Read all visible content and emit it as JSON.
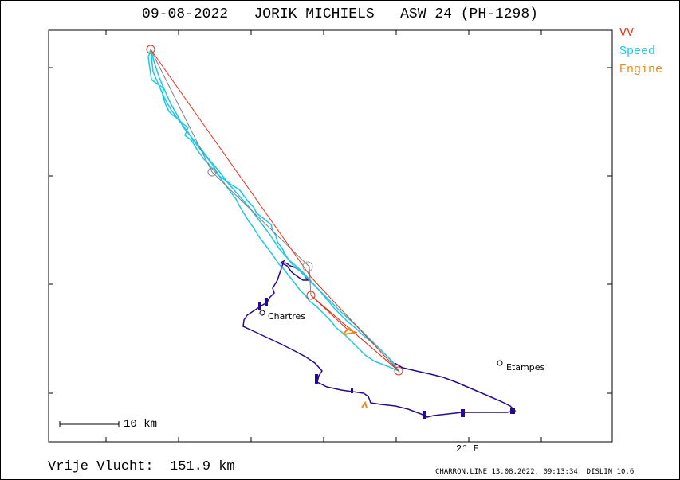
{
  "title": "09-08-2022   JORIK MICHIELS   ASW 24 (PH-1298)",
  "legend": {
    "vv": {
      "label": "VV",
      "color": "#e8321e"
    },
    "speed": {
      "label": "Speed",
      "color": "#1ec8e6"
    },
    "engine": {
      "label": "Engine",
      "color": "#e68c1e"
    }
  },
  "colors": {
    "track": "#2a0a8c",
    "frame": "#000000"
  },
  "scale_label": "10 km",
  "lon_label": "2° E",
  "distance_text": "Vrije Vlucht:  151.9 km",
  "footer": "CHARRON.LINE 13.08.2022, 09:13:34, DISLIN 10.6",
  "cities": [
    {
      "name": "Chartres"
    },
    {
      "name": "Etampes"
    }
  ]
}
